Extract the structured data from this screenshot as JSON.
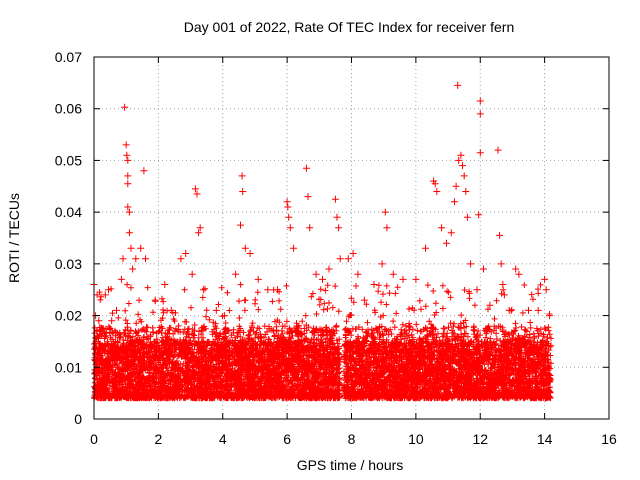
{
  "chart_data": {
    "type": "scatter",
    "title": "Day 001 of 2022, Rate Of TEC Index for receiver fern",
    "xlabel": "GPS time / hours",
    "ylabel": "ROTI / TECUs",
    "xlim": [
      0,
      16
    ],
    "ylim": [
      0,
      0.07
    ],
    "x_ticks": [
      0,
      2,
      4,
      6,
      8,
      10,
      12,
      14,
      16
    ],
    "x_tick_labels": [
      "0",
      "2",
      "4",
      "6",
      "8",
      "10",
      "12",
      "14",
      "16"
    ],
    "y_ticks": [
      0,
      0.01,
      0.02,
      0.03,
      0.04,
      0.05,
      0.06,
      0.07
    ],
    "y_tick_labels": [
      "0",
      "0.01",
      "0.02",
      "0.03",
      "0.04",
      "0.05",
      "0.06",
      "0.07"
    ],
    "grid": true,
    "marker": "+",
    "color": "#ff0000",
    "data_range_x": [
      0,
      14.2
    ],
    "bulk_band_y": [
      0.004,
      0.015
    ],
    "series": [
      {
        "name": "ROTI",
        "points": [
          [
            0.0,
            0.026
          ],
          [
            0.05,
            0.02
          ],
          [
            0.15,
            0.019
          ],
          [
            0.35,
            0.024
          ],
          [
            0.45,
            0.025
          ],
          [
            0.55,
            0.019
          ],
          [
            0.7,
            0.021
          ],
          [
            0.85,
            0.027
          ],
          [
            0.9,
            0.031
          ],
          [
            0.95,
            0.0603
          ],
          [
            1.0,
            0.053
          ],
          [
            1.02,
            0.051
          ],
          [
            1.05,
            0.05
          ],
          [
            1.05,
            0.047
          ],
          [
            1.05,
            0.0455
          ],
          [
            1.05,
            0.041
          ],
          [
            1.1,
            0.04
          ],
          [
            1.1,
            0.036
          ],
          [
            1.15,
            0.033
          ],
          [
            1.2,
            0.029
          ],
          [
            1.3,
            0.031
          ],
          [
            1.45,
            0.033
          ],
          [
            1.55,
            0.048
          ],
          [
            1.6,
            0.031
          ],
          [
            1.9,
            0.023
          ],
          [
            2.2,
            0.026
          ],
          [
            2.4,
            0.021
          ],
          [
            2.7,
            0.031
          ],
          [
            2.85,
            0.032
          ],
          [
            3.05,
            0.028
          ],
          [
            3.15,
            0.0445
          ],
          [
            3.2,
            0.0435
          ],
          [
            3.25,
            0.036
          ],
          [
            3.3,
            0.037
          ],
          [
            3.4,
            0.025
          ],
          [
            3.8,
            0.021
          ],
          [
            4.05,
            0.02
          ],
          [
            4.4,
            0.028
          ],
          [
            4.55,
            0.0375
          ],
          [
            4.6,
            0.047
          ],
          [
            4.62,
            0.044
          ],
          [
            4.7,
            0.033
          ],
          [
            4.85,
            0.032
          ],
          [
            5.1,
            0.027
          ],
          [
            5.4,
            0.025
          ],
          [
            5.7,
            0.025
          ],
          [
            6.0,
            0.042
          ],
          [
            6.02,
            0.041
          ],
          [
            6.05,
            0.039
          ],
          [
            6.1,
            0.037
          ],
          [
            6.2,
            0.033
          ],
          [
            6.6,
            0.0485
          ],
          [
            6.65,
            0.043
          ],
          [
            6.7,
            0.037
          ],
          [
            6.9,
            0.028
          ],
          [
            7.1,
            0.027
          ],
          [
            7.3,
            0.029
          ],
          [
            7.5,
            0.0425
          ],
          [
            7.55,
            0.039
          ],
          [
            7.6,
            0.037
          ],
          [
            7.65,
            0.031
          ],
          [
            7.9,
            0.031
          ],
          [
            8.05,
            0.032
          ],
          [
            8.2,
            0.028
          ],
          [
            8.4,
            0.023
          ],
          [
            8.7,
            0.026
          ],
          [
            8.95,
            0.03
          ],
          [
            9.05,
            0.04
          ],
          [
            9.1,
            0.037
          ],
          [
            9.3,
            0.028
          ],
          [
            9.6,
            0.027
          ],
          [
            10.0,
            0.027
          ],
          [
            10.3,
            0.033
          ],
          [
            10.55,
            0.046
          ],
          [
            10.6,
            0.0455
          ],
          [
            10.65,
            0.044
          ],
          [
            10.8,
            0.037
          ],
          [
            10.95,
            0.034
          ],
          [
            11.1,
            0.036
          ],
          [
            11.2,
            0.042
          ],
          [
            11.25,
            0.045
          ],
          [
            11.3,
            0.0645
          ],
          [
            11.33,
            0.05
          ],
          [
            11.4,
            0.051
          ],
          [
            11.45,
            0.049
          ],
          [
            11.5,
            0.047
          ],
          [
            11.55,
            0.044
          ],
          [
            11.6,
            0.039
          ],
          [
            11.7,
            0.03
          ],
          [
            11.9,
            0.025
          ],
          [
            11.95,
            0.0395
          ],
          [
            12.0,
            0.0615
          ],
          [
            12.0,
            0.059
          ],
          [
            12.0,
            0.0515
          ],
          [
            12.1,
            0.029
          ],
          [
            12.3,
            0.022
          ],
          [
            12.55,
            0.052
          ],
          [
            12.6,
            0.0355
          ],
          [
            12.65,
            0.03
          ],
          [
            12.7,
            0.026
          ],
          [
            12.75,
            0.024
          ],
          [
            12.9,
            0.021
          ],
          [
            13.1,
            0.029
          ],
          [
            13.2,
            0.028
          ],
          [
            13.5,
            0.021
          ],
          [
            13.8,
            0.021
          ],
          [
            14.0,
            0.027
          ],
          [
            14.05,
            0.025
          ],
          [
            14.15,
            0.02
          ]
        ]
      }
    ]
  }
}
